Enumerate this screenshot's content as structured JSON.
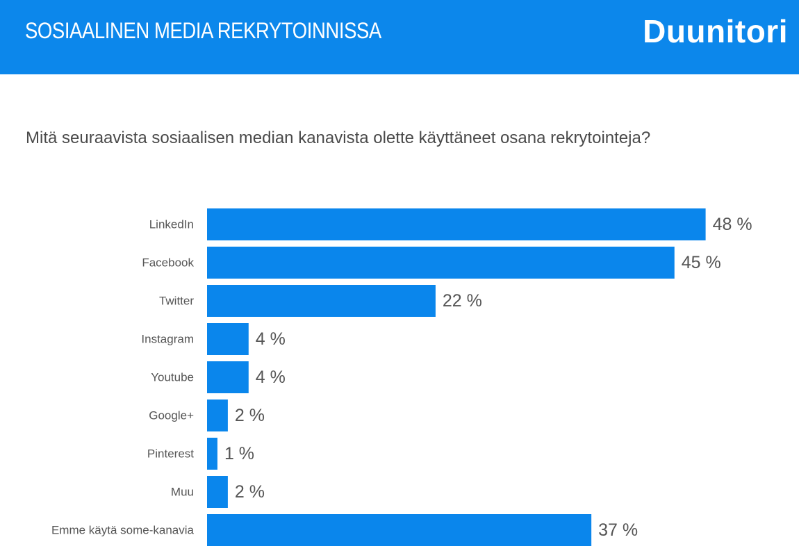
{
  "header": {
    "title": "SOSIAALINEN MEDIA REKRYTOINNISSA",
    "logo_text": "Duunitori",
    "background_color": "#0c87eb"
  },
  "question": "Mitä seuraavista sosiaalisen median kanavista olette käyttäneet osana rekrytointeja?",
  "chart_data": {
    "type": "bar",
    "orientation": "horizontal",
    "bar_color": "#0a86ec",
    "grid": false,
    "legend": "none",
    "categories": [
      "LinkedIn",
      "Facebook",
      "Twitter",
      "Instagram",
      "Youtube",
      "Google+",
      "Pinterest",
      "Muu",
      "Emme käytä some-kanavia"
    ],
    "values": [
      48,
      45,
      22,
      4,
      4,
      2,
      1,
      2,
      37
    ],
    "value_labels": [
      "48 %",
      "45 %",
      "22 %",
      "4 %",
      "4 %",
      "2 %",
      "1 %",
      "2 %",
      "37 %"
    ],
    "xlim": [
      0,
      100
    ]
  }
}
